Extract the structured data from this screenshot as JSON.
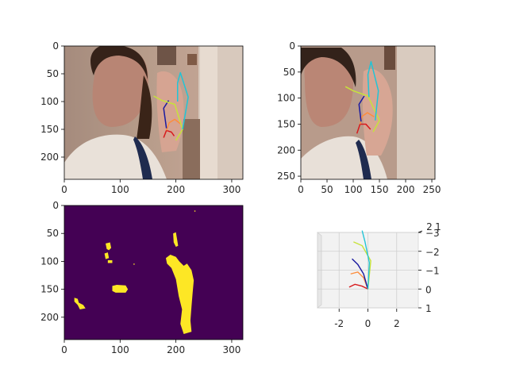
{
  "figure": {
    "background": "#ffffff",
    "axis_color": "#000000",
    "text_color": "#262626"
  },
  "chart_data": [
    {
      "id": "panel-top-left",
      "type": "image",
      "content": "photo of a person raising the left hand with coloured hand-keypoint skeleton overlay",
      "xlim": [
        0,
        320
      ],
      "ylim": [
        240,
        0
      ],
      "xticks": [
        0,
        100,
        200,
        300
      ],
      "yticks": [
        0,
        50,
        100,
        150,
        200
      ],
      "grid": false,
      "skeleton_series": [
        {
          "color": "#d7191c",
          "points": [
            [
              178,
              165
            ],
            [
              183,
              152
            ],
            [
              192,
              155
            ],
            [
              197,
              162
            ]
          ]
        },
        {
          "color": "#fd8d3c",
          "points": [
            [
              183,
              152
            ],
            [
              188,
              138
            ],
            [
              198,
              132
            ],
            [
              208,
              140
            ]
          ]
        },
        {
          "color": "#1a1aa0",
          "points": [
            [
              183,
              148
            ],
            [
              178,
              112
            ],
            [
              187,
              98
            ]
          ]
        },
        {
          "color": "#c7e33a",
          "points": [
            [
              160,
              90
            ],
            [
              175,
              98
            ],
            [
              198,
              105
            ],
            [
              212,
              150
            ],
            [
              200,
              170
            ]
          ]
        },
        {
          "color": "#22c4d6",
          "points": [
            [
              203,
              100
            ],
            [
              203,
              66
            ],
            [
              208,
              48
            ],
            [
              222,
              92
            ],
            [
              212,
              150
            ]
          ]
        }
      ]
    },
    {
      "id": "panel-top-right",
      "type": "image",
      "content": "resized 256 x 256 crop of the same photo with hand-keypoint skeleton overlay",
      "xlim": [
        0,
        256
      ],
      "ylim": [
        256,
        0
      ],
      "xticks": [
        0,
        50,
        100,
        150,
        200,
        250
      ],
      "yticks": [
        0,
        50,
        100,
        150,
        200,
        250
      ],
      "grid": false,
      "skeleton_series": [
        {
          "color": "#d7191c",
          "points": [
            [
              107,
              168
            ],
            [
              113,
              150
            ],
            [
              124,
              150
            ],
            [
              133,
              160
            ]
          ]
        },
        {
          "color": "#fd8d3c",
          "points": [
            [
              113,
              150
            ],
            [
              117,
              135
            ],
            [
              127,
              128
            ],
            [
              140,
              136
            ]
          ]
        },
        {
          "color": "#1a1aa0",
          "points": [
            [
              115,
              145
            ],
            [
              111,
              112
            ],
            [
              121,
              96
            ]
          ]
        },
        {
          "color": "#c7e33a",
          "points": [
            [
              85,
              78
            ],
            [
              100,
              86
            ],
            [
              128,
              96
            ],
            [
              150,
              143
            ],
            [
              138,
              165
            ]
          ]
        },
        {
          "color": "#22c4d6",
          "points": [
            [
              130,
              98
            ],
            [
              128,
              55
            ],
            [
              134,
              30
            ],
            [
              148,
              86
            ],
            [
              142,
              143
            ]
          ]
        }
      ]
    },
    {
      "id": "panel-bottom-left",
      "type": "heatmap",
      "content": "binary segmentation mask",
      "colors": {
        "background": "#440154",
        "foreground": "#fde725"
      },
      "xlim": [
        0,
        320
      ],
      "ylim": [
        240,
        0
      ],
      "xticks": [
        0,
        100,
        200,
        300
      ],
      "yticks": [
        0,
        50,
        100,
        150,
        200
      ],
      "grid": false,
      "blobs": [
        {
          "points": [
            [
              195,
              50
            ],
            [
              200,
              48
            ],
            [
              202,
              60
            ],
            [
              204,
              72
            ],
            [
              200,
              74
            ],
            [
              196,
              66
            ]
          ]
        },
        {
          "points": [
            [
              182,
              94
            ],
            [
              190,
              88
            ],
            [
              200,
              92
            ],
            [
              206,
              100
            ],
            [
              214,
              108
            ],
            [
              220,
              104
            ],
            [
              228,
              116
            ],
            [
              232,
              134
            ],
            [
              230,
              156
            ],
            [
              228,
              180
            ],
            [
              226,
              206
            ],
            [
              228,
              226
            ],
            [
              214,
              230
            ],
            [
              208,
              212
            ],
            [
              211,
              186
            ],
            [
              205,
              162
            ],
            [
              200,
              132
            ],
            [
              192,
              112
            ],
            [
              184,
              104
            ]
          ]
        },
        {
          "points": [
            [
              74,
              68
            ],
            [
              82,
              66
            ],
            [
              84,
              76
            ],
            [
              80,
              80
            ],
            [
              76,
              78
            ]
          ]
        },
        {
          "points": [
            [
              72,
              86
            ],
            [
              78,
              84
            ],
            [
              80,
              94
            ],
            [
              74,
              96
            ]
          ]
        },
        {
          "points": [
            [
              78,
              98
            ],
            [
              86,
              98
            ],
            [
              86,
              103
            ],
            [
              78,
              103
            ]
          ]
        },
        {
          "points": [
            [
              86,
              144
            ],
            [
              94,
              142
            ],
            [
              110,
              143
            ],
            [
              114,
              150
            ],
            [
              110,
              156
            ],
            [
              92,
              156
            ],
            [
              86,
              153
            ]
          ]
        },
        {
          "points": [
            [
              18,
              165
            ],
            [
              24,
              167
            ],
            [
              26,
              174
            ],
            [
              34,
              178
            ],
            [
              38,
              184
            ],
            [
              28,
              186
            ],
            [
              24,
              178
            ],
            [
              18,
              172
            ]
          ]
        },
        {
          "points": [
            [
              233,
              9
            ],
            [
              235,
              9
            ],
            [
              235,
              11
            ],
            [
              233,
              11
            ]
          ]
        },
        {
          "points": [
            [
              124,
              104
            ],
            [
              126,
              104
            ],
            [
              126,
              106
            ],
            [
              124,
              106
            ]
          ]
        }
      ]
    },
    {
      "id": "panel-bottom-right",
      "type": "line",
      "content": "3D hand skeleton",
      "projection": "3d",
      "xlim": [
        -3.5,
        3.5
      ],
      "ylim": [
        1,
        -3
      ],
      "zlim": [
        1,
        2
      ],
      "xticks": [
        -2,
        0,
        2
      ],
      "yticks": [
        -3,
        -2,
        -1,
        0,
        1
      ],
      "zticks": [
        1,
        2
      ],
      "pane_color": "#f2f2f2",
      "series": [
        {
          "color": "#d7191c",
          "x": [
            0,
            -0.4,
            -0.9,
            -1.3
          ],
          "y": [
            0,
            -0.15,
            -0.25,
            -0.1
          ]
        },
        {
          "color": "#fd8d3c",
          "x": [
            0,
            -0.3,
            -0.7,
            -1.2
          ],
          "y": [
            0,
            -0.6,
            -0.9,
            -0.8
          ]
        },
        {
          "color": "#1a1aa0",
          "x": [
            0,
            -0.3,
            -0.7,
            -1.1
          ],
          "y": [
            0,
            -0.8,
            -1.3,
            -1.6
          ]
        },
        {
          "color": "#c7e33a",
          "x": [
            0,
            0.2,
            -0.4,
            -1.0
          ],
          "y": [
            0,
            -1.5,
            -2.3,
            -2.5
          ]
        },
        {
          "color": "#22c4d6",
          "x": [
            0,
            0.1,
            -0.2,
            -0.4
          ],
          "y": [
            0,
            -1.4,
            -2.5,
            -3.1
          ]
        }
      ]
    }
  ]
}
